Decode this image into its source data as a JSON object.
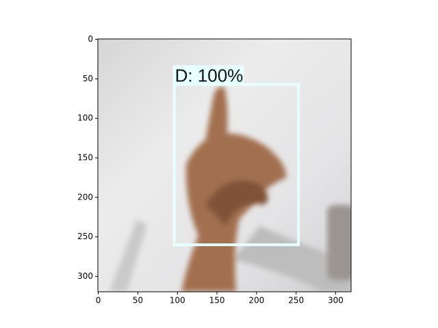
{
  "chart_data": {
    "type": "image",
    "xlim": [
      -0.5,
      319.5
    ],
    "ylim": [
      319.5,
      -0.5
    ],
    "xticks": [
      0,
      50,
      100,
      150,
      200,
      250,
      300
    ],
    "yticks": [
      0,
      50,
      100,
      150,
      200,
      250,
      300
    ],
    "boxes": [
      {
        "label": "D: 100%",
        "color": "#e6ffff",
        "x": [
          96,
          253
        ],
        "y": [
          57,
          260
        ]
      }
    ]
  }
}
